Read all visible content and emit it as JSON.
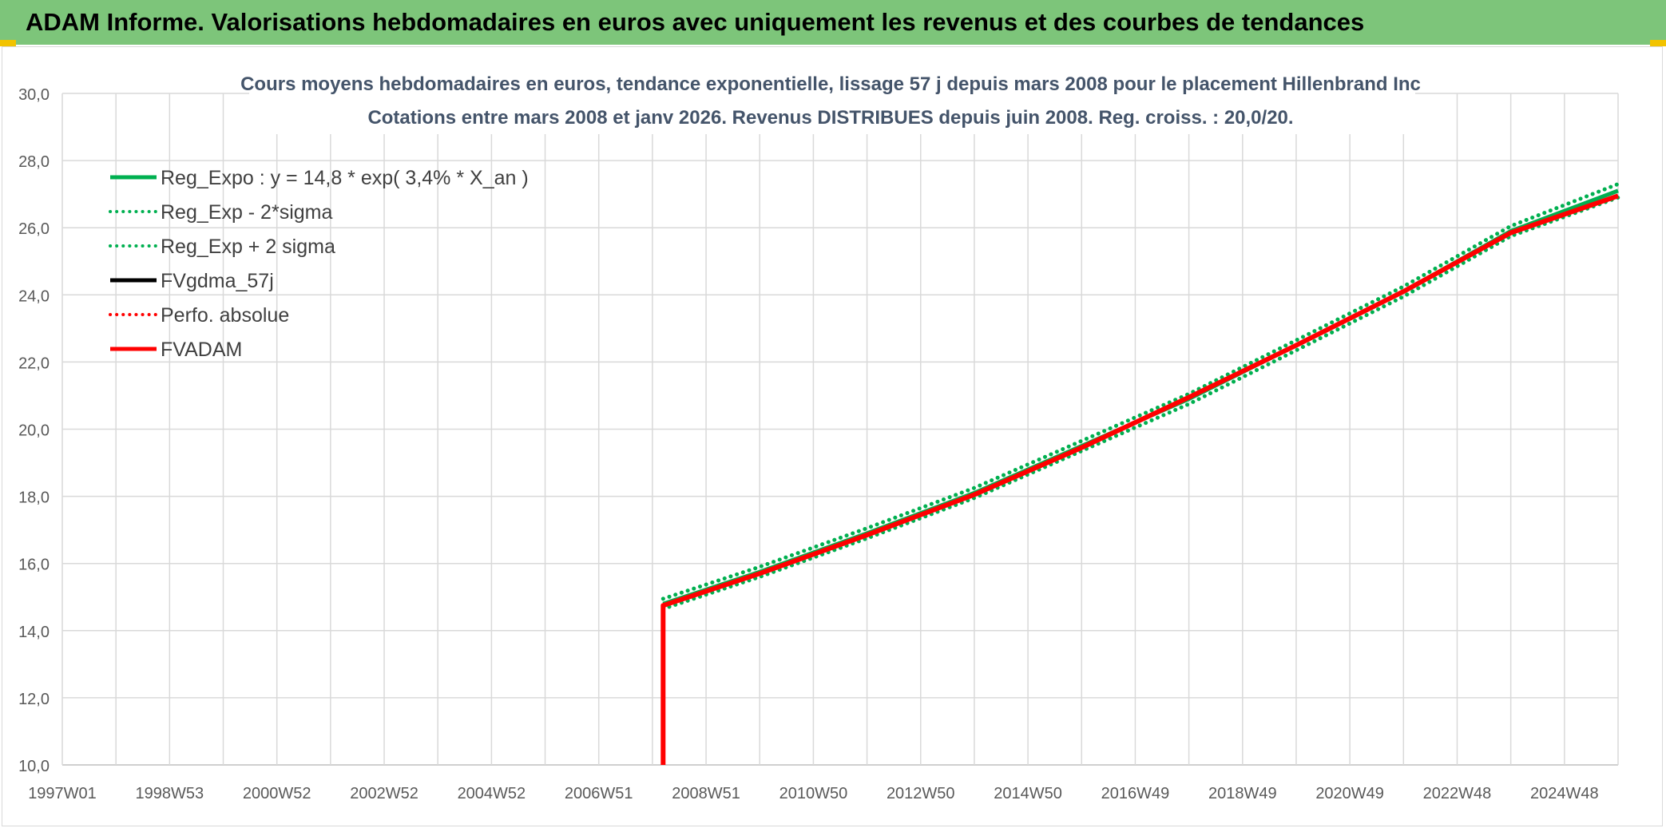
{
  "header": {
    "title": "ADAM Informe. Valorisations hebdomadaires en euros avec uniquement les revenus et des courbes de tendances"
  },
  "chart_data": {
    "type": "line",
    "title": "Cours moyens hebdomadaires en euros, tendance exponentielle, lissage 57 j depuis mars 2008 pour le placement Hillenbrand Inc",
    "subtitle": "Cotations entre mars 2008 et janv 2026. Revenus DISTRIBUES depuis juin 2008. Reg. croiss. : 20,0/20.",
    "ylim": [
      10,
      30
    ],
    "xlim": [
      1997.0,
      2026.0
    ],
    "grid": true,
    "legend_position": "top-left",
    "y_ticks": [
      "10,0",
      "12,0",
      "14,0",
      "16,0",
      "18,0",
      "20,0",
      "22,0",
      "24,0",
      "26,0",
      "28,0",
      "30,0"
    ],
    "x_ticks": [
      {
        "label": "1997W01",
        "x": 1997.0
      },
      {
        "label": "1998W53",
        "x": 1999.0
      },
      {
        "label": "2000W52",
        "x": 2001.0
      },
      {
        "label": "2002W52",
        "x": 2003.0
      },
      {
        "label": "2004W52",
        "x": 2005.0
      },
      {
        "label": "2006W51",
        "x": 2007.0
      },
      {
        "label": "2008W51",
        "x": 2009.0
      },
      {
        "label": "2010W50",
        "x": 2011.0
      },
      {
        "label": "2012W50",
        "x": 2013.0
      },
      {
        "label": "2014W50",
        "x": 2015.0
      },
      {
        "label": "2016W49",
        "x": 2017.0
      },
      {
        "label": "2018W49",
        "x": 2019.0
      },
      {
        "label": "2020W49",
        "x": 2021.0
      },
      {
        "label": "2022W48",
        "x": 2023.0
      },
      {
        "label": "2024W48",
        "x": 2025.0
      }
    ],
    "series": [
      {
        "name": "Reg_Expo : y = 14,8 * exp( 3,4% *  X_an )",
        "color": "#00b050",
        "style": "solid",
        "x": [
          2008.2,
          2010.0,
          2012.0,
          2014.0,
          2016.0,
          2018.0,
          2020.0,
          2022.0,
          2024.0,
          2026.0
        ],
        "y": [
          14.8,
          15.75,
          16.9,
          18.1,
          19.5,
          20.9,
          22.5,
          24.1,
          25.9,
          27.1
        ]
      },
      {
        "name": "Reg_Exp - 2*sigma",
        "color": "#00b050",
        "style": "dotted",
        "x": [
          2008.2,
          2010.0,
          2012.0,
          2014.0,
          2016.0,
          2018.0,
          2020.0,
          2022.0,
          2024.0,
          2026.0
        ],
        "y": [
          14.65,
          15.6,
          16.75,
          17.95,
          19.35,
          20.75,
          22.35,
          23.95,
          25.75,
          26.9
        ]
      },
      {
        "name": "Reg_Exp + 2 sigma",
        "color": "#00b050",
        "style": "dotted",
        "x": [
          2008.2,
          2010.0,
          2012.0,
          2014.0,
          2016.0,
          2018.0,
          2020.0,
          2022.0,
          2024.0,
          2026.0
        ],
        "y": [
          14.95,
          15.9,
          17.05,
          18.25,
          19.65,
          21.05,
          22.65,
          24.25,
          26.05,
          27.3
        ]
      },
      {
        "name": "FVgdma_57j",
        "color": "#000000",
        "style": "solid",
        "x": [
          2008.2,
          2010.0,
          2012.0,
          2014.0,
          2016.0,
          2018.0,
          2020.0,
          2022.0,
          2024.0,
          2026.0
        ],
        "y": [
          14.75,
          15.7,
          16.85,
          18.05,
          19.45,
          20.95,
          22.5,
          24.1,
          25.85,
          26.95
        ]
      },
      {
        "name": "Perfo. absolue",
        "color": "#ff0000",
        "style": "dotted",
        "x": [
          2008.2,
          2010.0,
          2012.0,
          2014.0,
          2016.0,
          2018.0,
          2020.0,
          2022.0,
          2024.0,
          2026.0
        ],
        "y": [
          14.75,
          15.7,
          16.85,
          18.05,
          19.45,
          20.95,
          22.5,
          24.1,
          25.85,
          26.95
        ]
      },
      {
        "name": "FVADAM",
        "color": "#ff0000",
        "style": "solid",
        "x": [
          2008.2,
          2008.2,
          2010.0,
          2012.0,
          2014.0,
          2016.0,
          2018.0,
          2020.0,
          2022.0,
          2024.0,
          2026.0
        ],
        "y": [
          10.0,
          14.75,
          15.7,
          16.85,
          18.05,
          19.45,
          20.95,
          22.5,
          24.1,
          25.85,
          26.95
        ]
      }
    ]
  }
}
